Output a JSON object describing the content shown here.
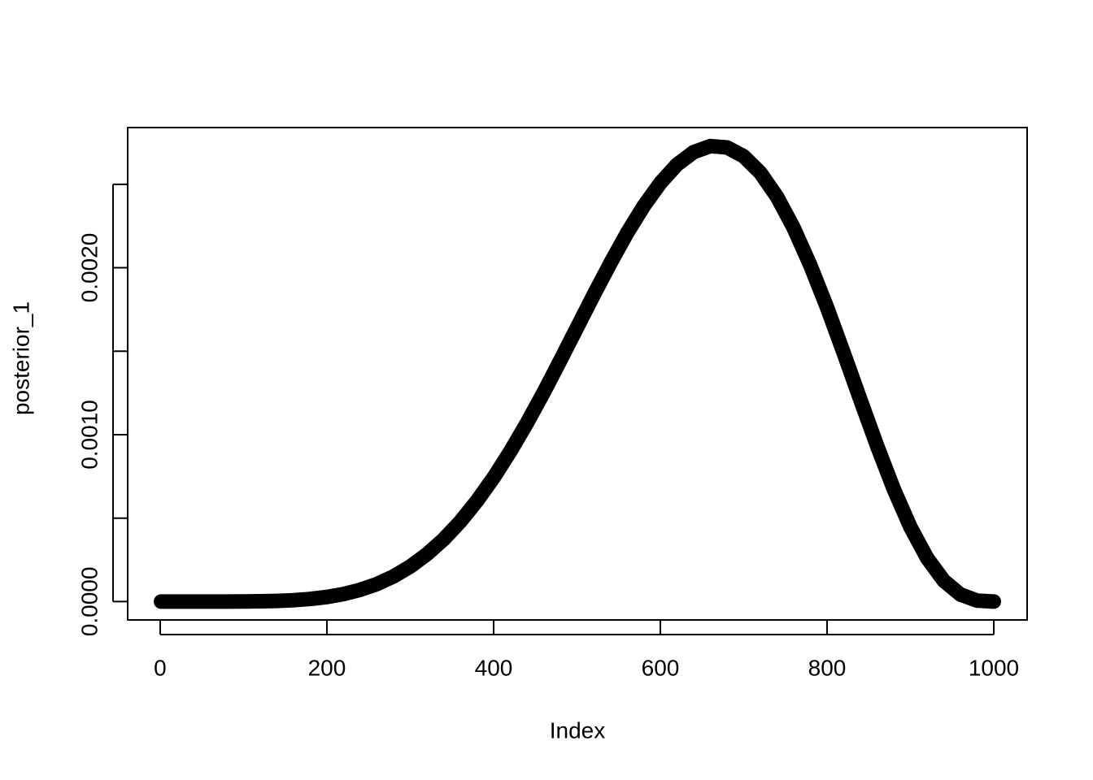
{
  "chart_data": {
    "type": "scatter",
    "x_label": "Index",
    "y_label": "posterior_1",
    "x": [
      1,
      20,
      40,
      60,
      80,
      100,
      120,
      140,
      160,
      180,
      200,
      220,
      240,
      260,
      280,
      300,
      320,
      340,
      360,
      380,
      400,
      420,
      440,
      460,
      480,
      500,
      520,
      540,
      560,
      580,
      600,
      620,
      640,
      660,
      680,
      700,
      720,
      740,
      760,
      780,
      800,
      820,
      840,
      860,
      880,
      900,
      920,
      940,
      960,
      980,
      1000
    ],
    "values": [
      0,
      0,
      0,
      3e-08,
      1.7e-07,
      6.1e-07,
      1.71e-06,
      4.02e-06,
      8.36e-06,
      1.575e-05,
      2.75e-05,
      4.52e-05,
      7.05e-05,
      0.000105,
      0.000151,
      0.00021,
      0.000284,
      0.000373,
      0.000479,
      0.000603,
      0.000743,
      0.0009,
      0.00107,
      0.001253,
      0.001445,
      0.001641,
      0.001837,
      0.002027,
      0.002207,
      0.002369,
      0.002508,
      0.002618,
      0.002693,
      0.002729,
      0.002721,
      0.002668,
      0.002569,
      0.002425,
      0.002238,
      0.002014,
      0.001762,
      0.001489,
      0.001209,
      0.000933,
      0.000674,
      0.000446,
      0.000261,
      0.000125,
      4.21e-05,
      5.96e-06,
      0
    ],
    "color": "#000000",
    "xlim": [
      -39,
      1040
    ],
    "ylim": [
      -0.00011,
      0.00284
    ],
    "xticks": [
      0,
      200,
      400,
      600,
      800,
      1000
    ],
    "yticks": [
      {
        "value": 0,
        "label": "0.0000"
      },
      {
        "value": 0.0005,
        "label": null
      },
      {
        "value": 0.001,
        "label": "0.0010"
      },
      {
        "value": 0.0015,
        "label": null
      },
      {
        "value": 0.002,
        "label": "0.0020"
      },
      {
        "value": 0.0025,
        "label": null
      }
    ],
    "grid": false
  }
}
